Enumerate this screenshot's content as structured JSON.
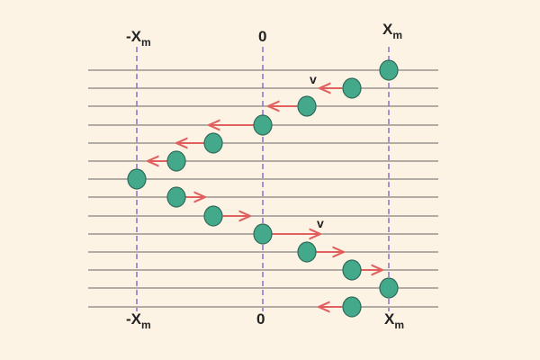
{
  "labels": {
    "top": [
      {
        "text": "-X",
        "sub": "m"
      },
      {
        "text": "0"
      },
      {
        "text": "X",
        "sub": "m"
      }
    ],
    "bottom": [
      {
        "text": "-X",
        "sub": "m"
      },
      {
        "text": "0"
      },
      {
        "text": "X",
        "sub": "m"
      }
    ],
    "velocity": [
      "v",
      "v"
    ]
  }
}
